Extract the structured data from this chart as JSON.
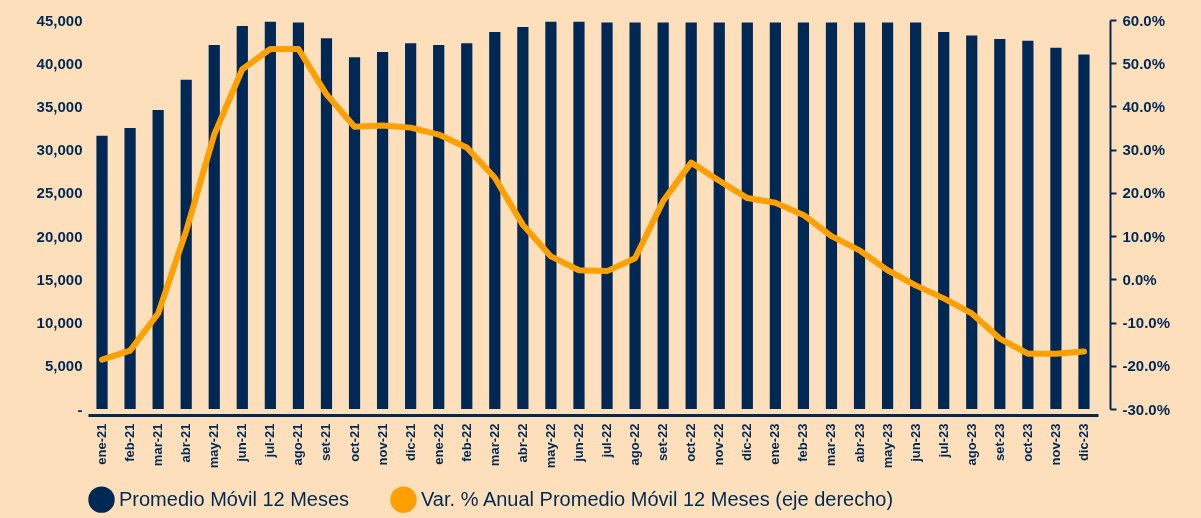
{
  "chart_data": {
    "type": "bar",
    "categories": [
      "ene-21",
      "feb-21",
      "mar-21",
      "abr-21",
      "may-21",
      "jun-21",
      "jul-21",
      "ago-21",
      "set-21",
      "oct-21",
      "nov-21",
      "dic-21",
      "ene-22",
      "feb-22",
      "mar-22",
      "abr-22",
      "may-22",
      "jun-22",
      "jul-22",
      "ago-22",
      "set-22",
      "oct-22",
      "nov-22",
      "dic-22",
      "ene-23",
      "feb-23",
      "mar-23",
      "abr-23",
      "may-23",
      "jun-23",
      "jul-23",
      "ago-23",
      "set-23",
      "oct-23",
      "nov-23",
      "dic-23"
    ],
    "series": [
      {
        "name": "Promedio Móvil 12 Meses",
        "color": "#002855",
        "values": [
          31600,
          32500,
          34600,
          38100,
          42100,
          44300,
          44800,
          44700,
          42900,
          40700,
          41300,
          42300,
          42100,
          42300,
          43600,
          44200,
          44800,
          44800,
          44700,
          44700,
          44700,
          44700,
          44700,
          44700,
          44700,
          44700,
          44700,
          44700,
          44700,
          44700,
          43600,
          43200,
          42800,
          42600,
          41800,
          41000
        ]
      },
      {
        "name": "Var. % Anual Promedio Móvil 12 Meses  (eje derecho)",
        "type": "line",
        "axis": "y2",
        "color": "#ffa000",
        "values": [
          -18.6,
          -16.5,
          -7.9,
          11.2,
          33.5,
          48.6,
          53.3,
          53.3,
          42.8,
          35.3,
          35.6,
          35.1,
          33.5,
          30.5,
          23.5,
          12.6,
          5.3,
          2.1,
          1.9,
          4.9,
          18.1,
          27.0,
          22.8,
          18.8,
          17.7,
          14.9,
          10.0,
          6.7,
          2.1,
          -1.4,
          -4.4,
          -7.9,
          -13.7,
          -17.2,
          -17.2,
          -16.7
        ]
      }
    ],
    "ylim": [
      0,
      45000
    ],
    "yticks": [
      {
        "value": 0,
        "label": "-"
      },
      {
        "value": 5000,
        "label": "5,000"
      },
      {
        "value": 10000,
        "label": "10,000"
      },
      {
        "value": 15000,
        "label": "15,000"
      },
      {
        "value": 20000,
        "label": "20,000"
      },
      {
        "value": 25000,
        "label": "25,000"
      },
      {
        "value": 30000,
        "label": "30,000"
      },
      {
        "value": 35000,
        "label": "35,000"
      },
      {
        "value": 40000,
        "label": "40,000"
      },
      {
        "value": 45000,
        "label": "45,000"
      }
    ],
    "y2lim": [
      -30,
      60
    ],
    "y2ticks": [
      {
        "value": -30,
        "label": "-30.0%"
      },
      {
        "value": -20,
        "label": "-20.0%"
      },
      {
        "value": -10,
        "label": "-10.0%"
      },
      {
        "value": 0,
        "label": "0.0%"
      },
      {
        "value": 10,
        "label": "10.0%"
      },
      {
        "value": 20,
        "label": "20.0%"
      },
      {
        "value": 30,
        "label": "30.0%"
      },
      {
        "value": 40,
        "label": "40.0%"
      },
      {
        "value": 50,
        "label": "50.0%"
      },
      {
        "value": 60,
        "label": "60.0%"
      }
    ],
    "legend": "bottom"
  }
}
